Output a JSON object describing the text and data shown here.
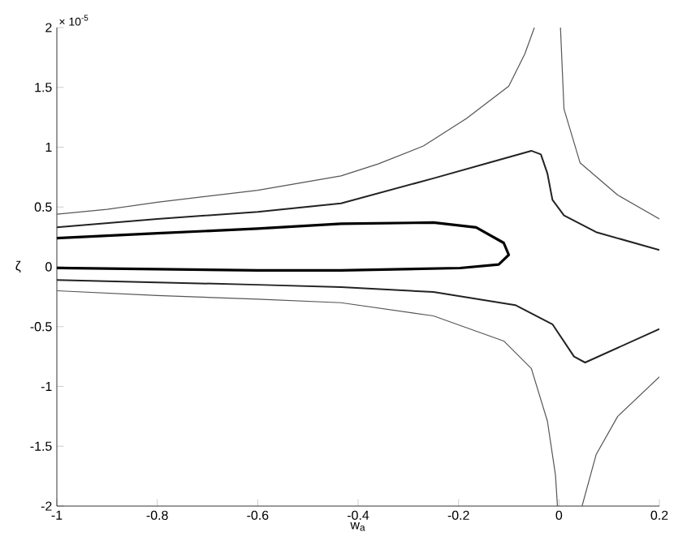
{
  "chart_data": {
    "type": "line",
    "xlabel": "w$_{a}$",
    "ylabel": "ζ",
    "annotations": [
      "× 10$^{-5}$"
    ],
    "xlim": [
      -1,
      0.2
    ],
    "ylim": [
      -2,
      2
    ],
    "xticks": [
      -1,
      -0.8,
      -0.6,
      -0.4,
      -0.2,
      0,
      0.2
    ],
    "yticks": [
      -2,
      -1.5,
      -1,
      -0.5,
      0,
      0.5,
      1,
      1.5,
      2
    ],
    "marker": "none",
    "line_style": "solid",
    "series": [
      {
        "color": "#555555",
        "x": [
          -1,
          -0.9,
          -0.8,
          -0.6,
          -0.434,
          -0.36,
          -0.27,
          -0.184,
          -0.1,
          -0.068,
          -0.049
        ],
        "values": [
          0.44,
          0.48,
          0.54,
          0.64,
          0.76,
          0.86,
          1.01,
          1.24,
          1.51,
          1.78,
          2.0
        ]
      },
      {
        "color": "#555555",
        "x": [
          0.003,
          0.01,
          0.042,
          0.117,
          0.2
        ],
        "values": [
          2.0,
          1.32,
          0.87,
          0.6,
          0.4
        ]
      },
      {
        "color": "#222222",
        "x": [
          -1,
          -0.8,
          -0.6,
          -0.434,
          -0.25,
          -0.14,
          -0.055,
          -0.036,
          -0.023,
          -0.013,
          0.01,
          0.074,
          0.2
        ],
        "values": [
          0.33,
          0.4,
          0.46,
          0.53,
          0.74,
          0.87,
          0.97,
          0.94,
          0.78,
          0.56,
          0.43,
          0.29,
          0.14
        ]
      },
      {
        "color": "#000000",
        "x": [
          -1,
          -0.8,
          -0.6,
          -0.434,
          -0.25,
          -0.165,
          -0.11,
          -0.1,
          -0.12,
          -0.197,
          -0.434,
          -0.6,
          -0.8,
          -1
        ],
        "values": [
          0.24,
          0.28,
          0.32,
          0.36,
          0.37,
          0.33,
          0.2,
          0.1,
          0.02,
          -0.01,
          -0.03,
          -0.03,
          -0.02,
          -0.01
        ]
      },
      {
        "color": "#222222",
        "x": [
          -1,
          -0.8,
          -0.6,
          -0.434,
          -0.25,
          -0.087,
          -0.013,
          0.03,
          0.052,
          0.2
        ],
        "values": [
          -0.11,
          -0.13,
          -0.15,
          -0.17,
          -0.21,
          -0.32,
          -0.48,
          -0.75,
          -0.8,
          -0.52
        ]
      },
      {
        "color": "#555555",
        "x": [
          -1,
          -0.8,
          -0.6,
          -0.434,
          -0.25,
          -0.11,
          -0.055,
          -0.023,
          -0.007,
          -0.003
        ],
        "values": [
          -0.2,
          -0.24,
          -0.27,
          -0.3,
          -0.41,
          -0.62,
          -0.85,
          -1.29,
          -1.74,
          -2.0
        ]
      },
      {
        "color": "#555555",
        "x": [
          0.046,
          0.074,
          0.117,
          0.2
        ],
        "values": [
          -2.0,
          -1.57,
          -1.25,
          -0.92
        ]
      }
    ]
  }
}
